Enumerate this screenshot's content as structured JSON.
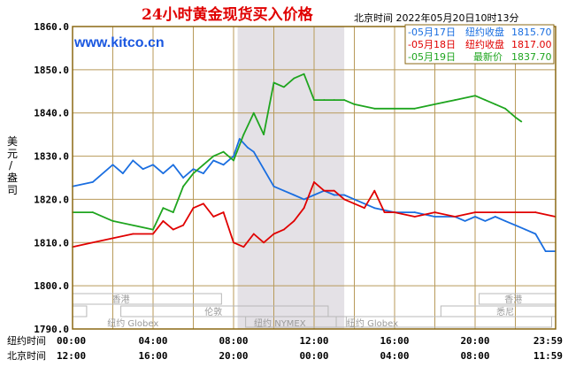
{
  "header": {
    "title": "24小时黄金现货买入价格",
    "timestamp": "北京时间   2022年05月20日10时13分",
    "url": "www.kitco.cn"
  },
  "colors": {
    "frame": "#8b6914",
    "grid": "#b89a5a",
    "shade": "#e4e1e6",
    "may17": "#1a6ee0",
    "may18": "#e00000",
    "may19": "#1fa51f"
  },
  "y_axis_label": [
    "美",
    "元",
    "/",
    "盎",
    "司"
  ],
  "x_axis": {
    "row1_label": "纽约时间",
    "row1_ticks": [
      "00:00",
      "04:00",
      "08:00",
      "12:00",
      "16:00",
      "20:00",
      "23:59"
    ],
    "row2_label": "北京时间",
    "row2_ticks": [
      "12:00",
      "16:00",
      "20:00",
      "00:00",
      "04:00",
      "08:00",
      "11:59"
    ]
  },
  "legend": [
    {
      "date": "-05月17日",
      "text": "纽约收盘",
      "value": "1815.70",
      "color": "#1a6ee0"
    },
    {
      "date": "-05月18日",
      "text": "纽约收盘",
      "value": "1817.00",
      "color": "#e00000"
    },
    {
      "date": "-05月19日",
      "text": "最新价",
      "value": "1837.70",
      "color": "#1fa51f"
    }
  ],
  "markets": [
    {
      "name": "香港"
    },
    {
      "name": "纽约 Globex"
    },
    {
      "name": "伦敦"
    },
    {
      "name": "纽约 NYMEX"
    },
    {
      "name": "纽约 Globex"
    },
    {
      "name": "香港"
    },
    {
      "name": "悉尼"
    }
  ],
  "chart_data": {
    "type": "line",
    "title": "24小时黄金现货买入价格",
    "ylabel": "美元/盎司",
    "ylim": [
      1790,
      1860
    ],
    "yticks": [
      1790,
      1800,
      1810,
      1820,
      1830,
      1840,
      1850,
      1860
    ],
    "ytick_labels": [
      "1790.0",
      "1800.0",
      "1810.0",
      "1820.0",
      "1830.0",
      "1840.0",
      "1850.0",
      "1860.0"
    ],
    "x_unit": "纽约时间 (小时)",
    "xlim": [
      0,
      24
    ],
    "shaded_range": [
      8.2,
      13.5
    ],
    "grid": true,
    "series": [
      {
        "name": "05月17日",
        "color": "#1a6ee0",
        "x": [
          0,
          1,
          2,
          2.5,
          3,
          3.5,
          4,
          4.5,
          5,
          5.5,
          6,
          6.5,
          7,
          7.5,
          8,
          8.3,
          8.7,
          9,
          9.5,
          10,
          10.5,
          11,
          11.5,
          12,
          12.5,
          13,
          13.5,
          14,
          15,
          16,
          17,
          18,
          19,
          19.5,
          20,
          20.5,
          21,
          21.5,
          22,
          22.5,
          23,
          23.5,
          23.99
        ],
        "values": [
          1823,
          1824,
          1828,
          1826,
          1829,
          1827,
          1828,
          1826,
          1828,
          1825,
          1827,
          1826,
          1829,
          1828,
          1830,
          1834,
          1832,
          1831,
          1827,
          1823,
          1822,
          1821,
          1820,
          1821,
          1822,
          1821,
          1821,
          1820,
          1818,
          1817,
          1817,
          1816,
          1816,
          1815,
          1816,
          1815,
          1816,
          1815,
          1814,
          1813,
          1812,
          1808,
          1808
        ]
      },
      {
        "name": "05月18日",
        "color": "#e00000",
        "x": [
          0,
          1,
          2,
          3,
          4,
          4.5,
          5,
          5.5,
          6,
          6.5,
          7,
          7.5,
          8,
          8.5,
          9,
          9.5,
          10,
          10.5,
          11,
          11.5,
          12,
          12.5,
          13,
          13.5,
          14,
          14.5,
          15,
          15.5,
          16,
          17,
          18,
          19,
          20,
          21,
          22,
          23,
          23.99
        ],
        "values": [
          1809,
          1810,
          1811,
          1812,
          1812,
          1815,
          1813,
          1814,
          1818,
          1819,
          1816,
          1817,
          1810,
          1809,
          1812,
          1810,
          1812,
          1813,
          1815,
          1818,
          1824,
          1822,
          1822,
          1820,
          1819,
          1818,
          1822,
          1817,
          1817,
          1816,
          1817,
          1816,
          1817,
          1817,
          1817,
          1817,
          1816
        ]
      },
      {
        "name": "05月19日",
        "color": "#1fa51f",
        "x": [
          0,
          1,
          2,
          3,
          4,
          4.5,
          5,
          5.5,
          6,
          6.5,
          7,
          7.5,
          8,
          8.5,
          9,
          9.5,
          10,
          10.5,
          11,
          11.5,
          12,
          12.5,
          13,
          13.5,
          14,
          15,
          16,
          17,
          18,
          19,
          20,
          20.5,
          21,
          21.5,
          22,
          22.3
        ],
        "values": [
          1817,
          1817,
          1815,
          1814,
          1813,
          1818,
          1817,
          1823,
          1826,
          1828,
          1830,
          1831,
          1829,
          1835,
          1840,
          1835,
          1847,
          1846,
          1848,
          1849,
          1843,
          1843,
          1843,
          1843,
          1842,
          1841,
          1841,
          1841,
          1842,
          1843,
          1844,
          1843,
          1842,
          1841,
          1839,
          1838
        ]
      }
    ]
  }
}
